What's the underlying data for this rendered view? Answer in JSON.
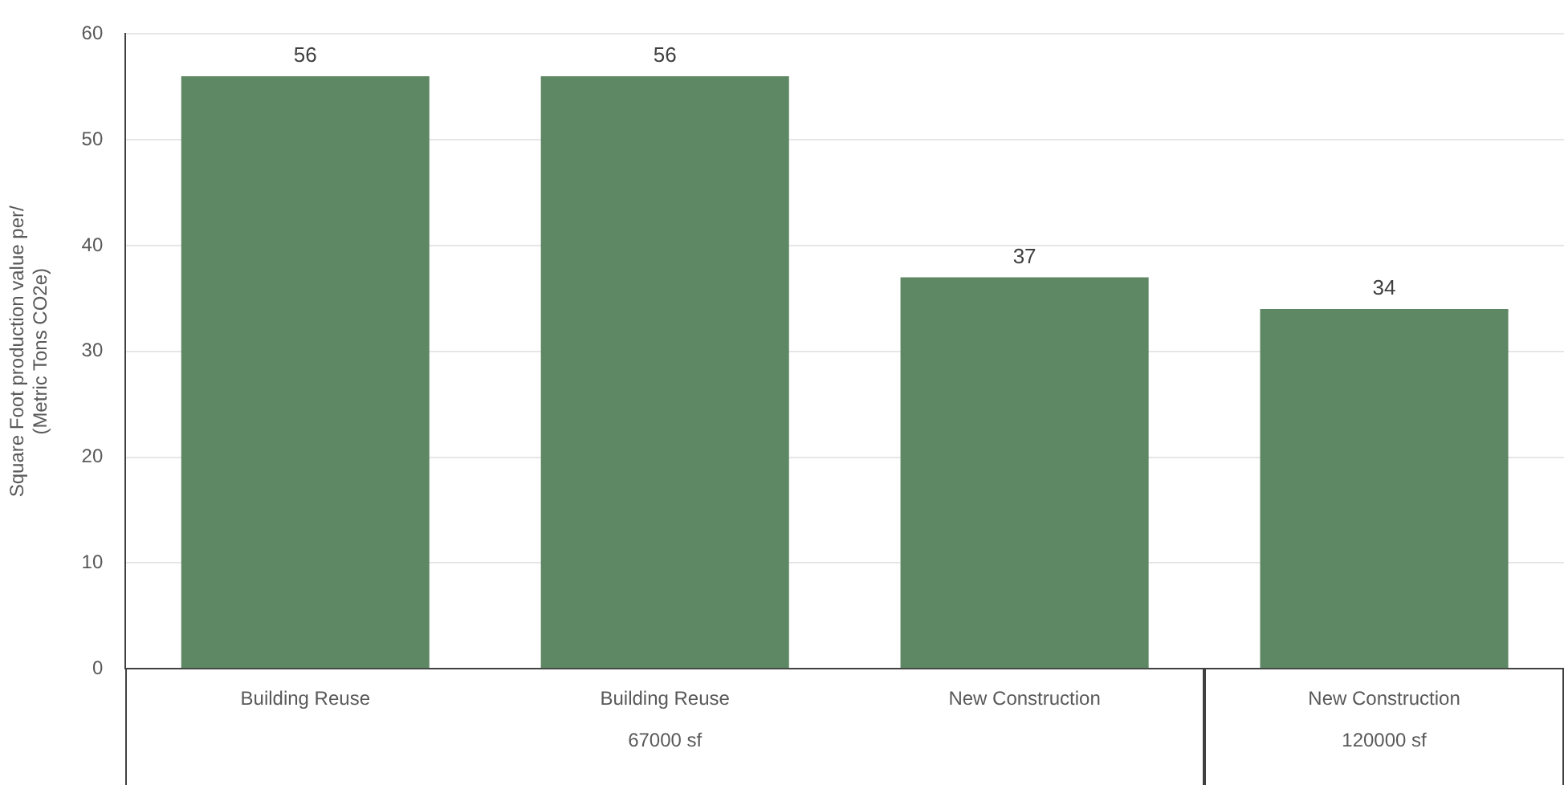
{
  "chart_data": {
    "type": "bar",
    "ylabel": "Square Foot production value per/\n(Metric Tons CO2e)",
    "categories": [
      "Building Reuse",
      "Building Reuse",
      "New Construction",
      "New Construction"
    ],
    "values": [
      56,
      56,
      37,
      34
    ],
    "color": "#5e8763",
    "ylim": [
      0,
      60
    ],
    "yticks": [
      0,
      10,
      20,
      30,
      40,
      50,
      60
    ],
    "grid": "y",
    "data_labels": true,
    "legend": false,
    "annotations": [
      "67000 sf",
      "120000 sf"
    ]
  }
}
